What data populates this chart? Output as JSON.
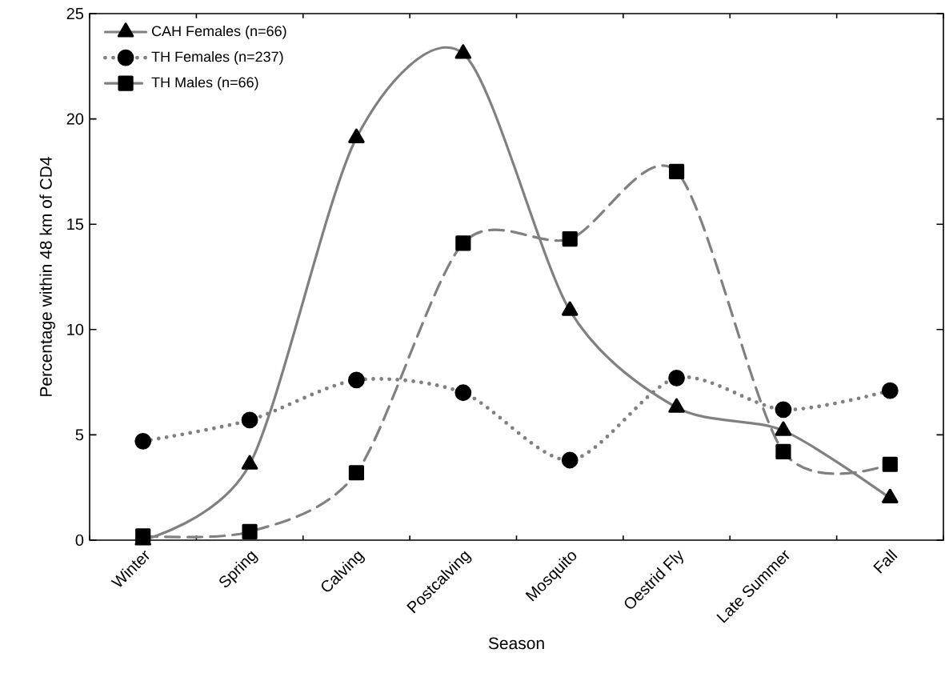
{
  "chart_data": {
    "type": "line",
    "xlabel": "Season",
    "ylabel": "Percentage within 48 km of CD4",
    "categories": [
      "Winter",
      "Spring",
      "Calving",
      "Postcalving",
      "Mosquito",
      "Oestrid Fly",
      "Late Summer",
      "Fall"
    ],
    "series": [
      {
        "name": "CAH Females (n=66)",
        "color": "#808080",
        "marker": "triangle",
        "line_style": "solid",
        "values": [
          0.0,
          3.6,
          19.1,
          23.1,
          10.9,
          6.3,
          5.2,
          2.0
        ]
      },
      {
        "name": "TH Females (n=237)",
        "color": "#808080",
        "marker": "circle",
        "line_style": "dotted",
        "values": [
          4.7,
          5.7,
          7.6,
          7.0,
          3.8,
          7.7,
          6.2,
          7.1
        ]
      },
      {
        "name": "TH Males (n=66)",
        "color": "#808080",
        "marker": "square",
        "line_style": "dashed",
        "values": [
          0.2,
          0.4,
          3.2,
          14.1,
          14.3,
          17.5,
          4.2,
          3.6
        ]
      }
    ],
    "ylim": [
      0,
      25
    ],
    "yticks": [
      0,
      5,
      10,
      15,
      20,
      25
    ],
    "legend": "top left",
    "grid": false
  }
}
